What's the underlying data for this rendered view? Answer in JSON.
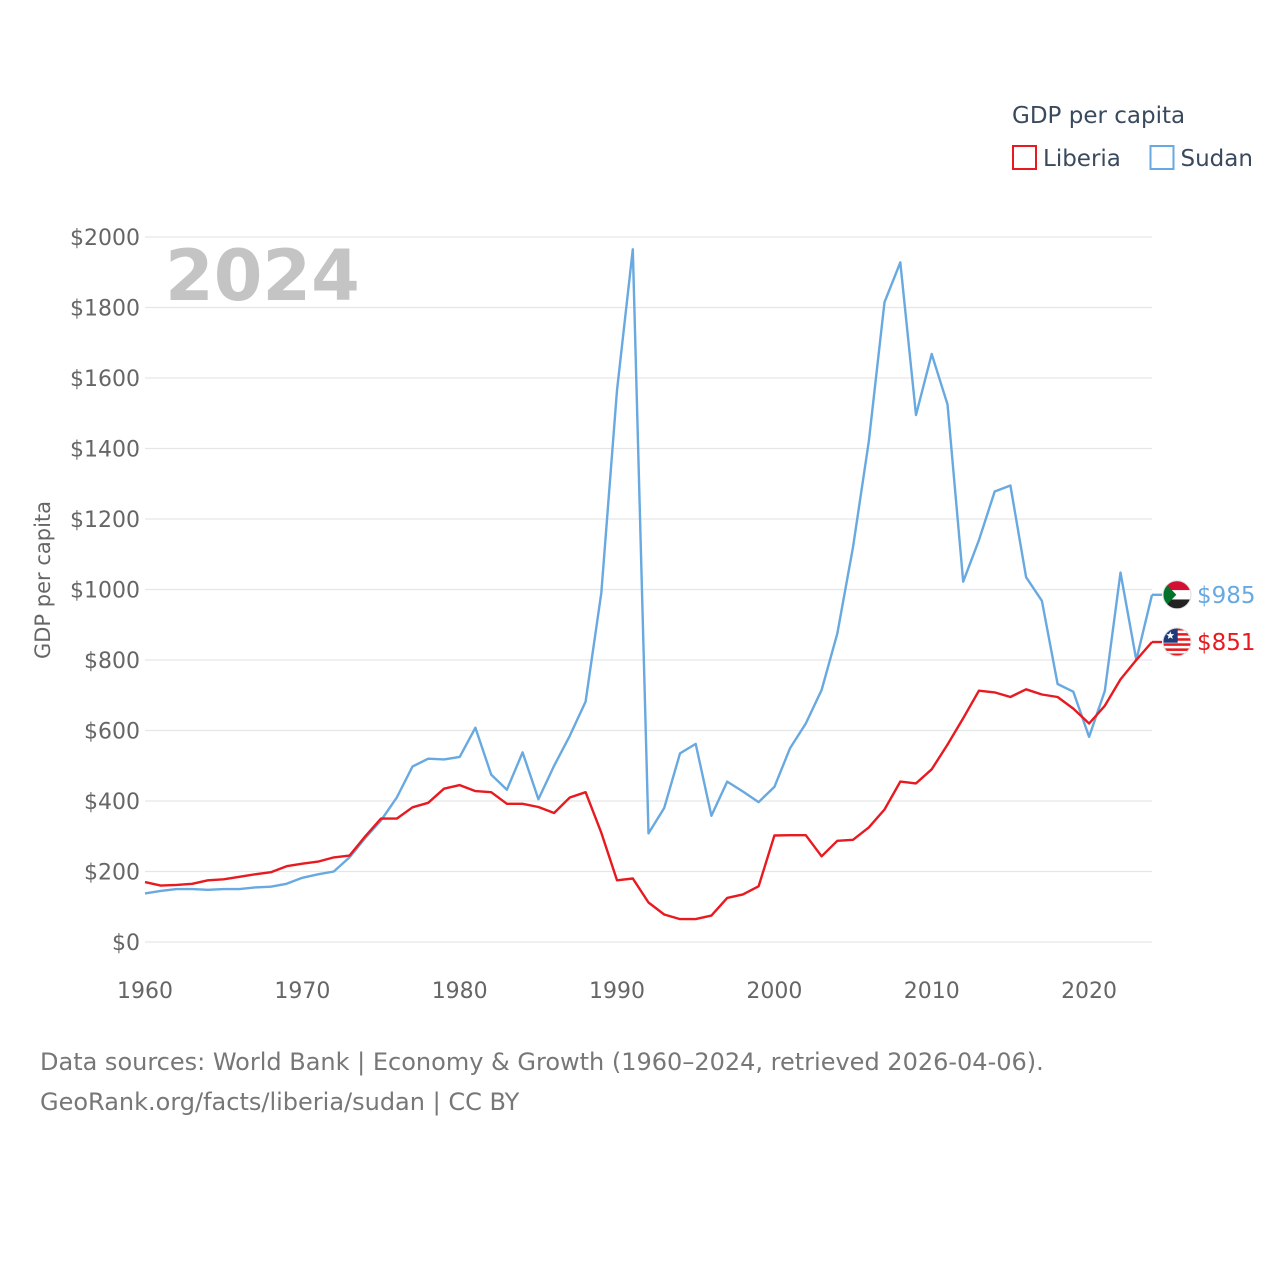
{
  "chart_data": {
    "type": "line",
    "legend_title": "GDP per capita",
    "legend_position": "top-right",
    "ylabel": "GDP per capita",
    "xlabel": "",
    "year_label": "2024",
    "xlim": [
      1960,
      2024
    ],
    "ylim": [
      0,
      2000
    ],
    "x_ticks": [
      1960,
      1970,
      1980,
      1990,
      2000,
      2010,
      2020
    ],
    "y_ticks": [
      0,
      200,
      400,
      600,
      800,
      1000,
      1200,
      1400,
      1600,
      1800,
      2000
    ],
    "y_tick_labels": [
      "$0",
      "$200",
      "$400",
      "$600",
      "$800",
      "$1000",
      "$1200",
      "$1400",
      "$1600",
      "$1800",
      "$2000"
    ],
    "x": [
      1960,
      1961,
      1962,
      1963,
      1964,
      1965,
      1966,
      1967,
      1968,
      1969,
      1970,
      1971,
      1972,
      1973,
      1974,
      1975,
      1976,
      1977,
      1978,
      1979,
      1980,
      1981,
      1982,
      1983,
      1984,
      1985,
      1986,
      1987,
      1988,
      1989,
      1990,
      1991,
      1992,
      1993,
      1994,
      1995,
      1996,
      1997,
      1998,
      1999,
      2000,
      2001,
      2002,
      2003,
      2004,
      2005,
      2006,
      2007,
      2008,
      2009,
      2010,
      2011,
      2012,
      2013,
      2014,
      2015,
      2016,
      2017,
      2018,
      2019,
      2020,
      2021,
      2022,
      2023,
      2024
    ],
    "series": [
      {
        "name": "Liberia",
        "color": "#e8191f",
        "end_label": "$851",
        "flag": "liberia-flag",
        "values": [
          170,
          160,
          162,
          165,
          175,
          178,
          185,
          192,
          198,
          215,
          222,
          228,
          240,
          245,
          300,
          350,
          350,
          382,
          395,
          435,
          445,
          428,
          425,
          392,
          392,
          383,
          366,
          410,
          425,
          310,
          175,
          180,
          112,
          78,
          65,
          65,
          75,
          125,
          135,
          158,
          302,
          303,
          303,
          243,
          287,
          290,
          325,
          376,
          455,
          450,
          490,
          560,
          635,
          713,
          708,
          695,
          717,
          702,
          695,
          662,
          620,
          670,
          745,
          800,
          851
        ]
      },
      {
        "name": "Sudan",
        "color": "#67a9e0",
        "end_label": "$985",
        "flag": "sudan-flag",
        "values": [
          138,
          145,
          150,
          150,
          148,
          150,
          150,
          155,
          157,
          165,
          182,
          192,
          200,
          240,
          295,
          345,
          410,
          498,
          520,
          518,
          525,
          608,
          475,
          432,
          538,
          405,
          500,
          585,
          682,
          990,
          1565,
          1965,
          308,
          380,
          535,
          562,
          358,
          455,
          427,
          397,
          440,
          550,
          620,
          715,
          875,
          1120,
          1420,
          1815,
          1928,
          1495,
          1668,
          1525,
          1022,
          1140,
          1278,
          1295,
          1035,
          968,
          732,
          710,
          582,
          712,
          1048,
          800,
          985
        ]
      }
    ]
  },
  "footer": {
    "line1": "Data sources: World Bank | Economy & Growth (1960–2024, retrieved 2026-04-06).",
    "line2": "GeoRank.org/facts/liberia/sudan | CC BY"
  }
}
